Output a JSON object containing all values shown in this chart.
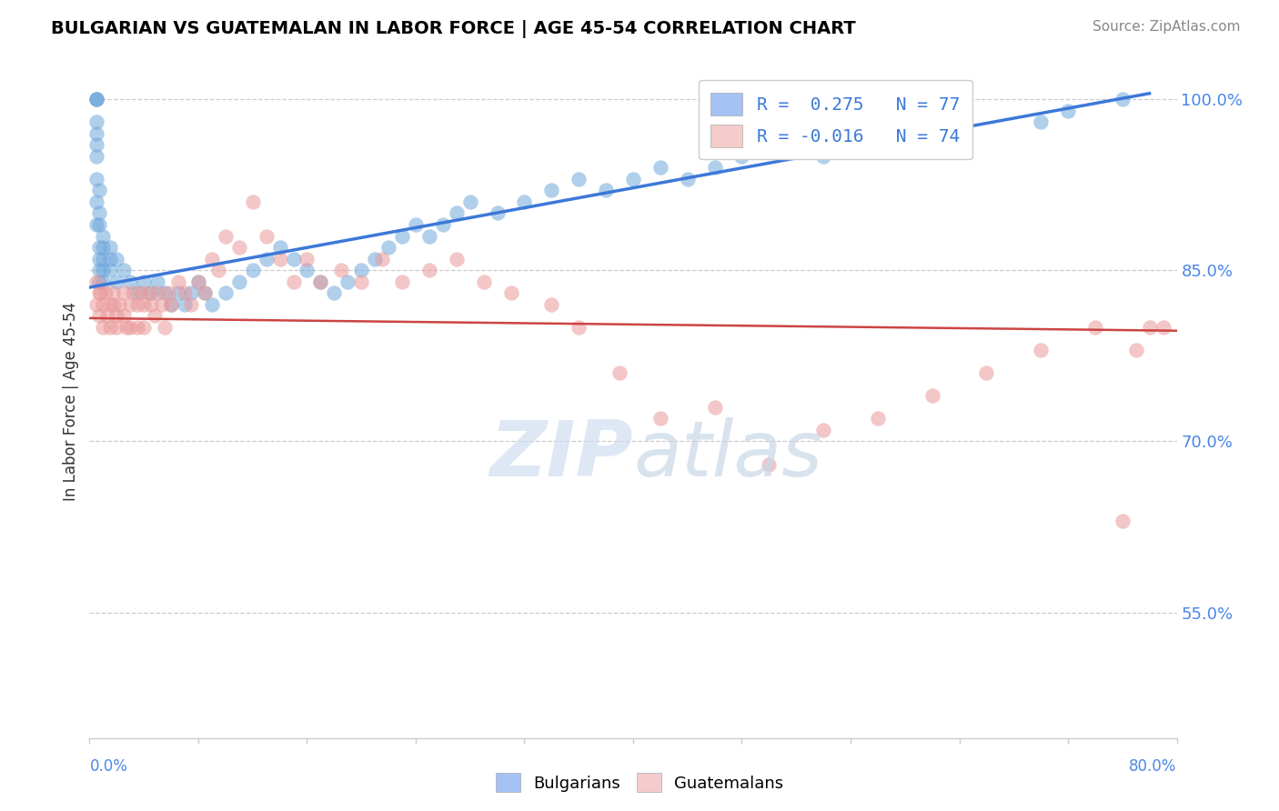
{
  "title": "BULGARIAN VS GUATEMALAN IN LABOR FORCE | AGE 45-54 CORRELATION CHART",
  "source": "Source: ZipAtlas.com",
  "ylabel": "In Labor Force | Age 45-54",
  "right_ytick_vals": [
    1.0,
    0.85,
    0.7,
    0.55
  ],
  "xlim": [
    0.0,
    0.8
  ],
  "ylim": [
    0.44,
    1.03
  ],
  "blue_R": 0.275,
  "blue_N": 77,
  "pink_R": -0.016,
  "pink_N": 74,
  "blue_color": "#6fa8dc",
  "pink_color": "#ea9999",
  "blue_fill": "#a4c2f4",
  "pink_fill": "#f4cccc",
  "trend_blue_color": "#3c78d8",
  "trend_pink_color": "#cc4444",
  "bg_color": "#ffffff",
  "grid_color": "#cccccc",
  "legend_text_color": "#3c78d8",
  "title_color": "#000000",
  "source_color": "#888888",
  "blue_x": [
    0.005,
    0.005,
    0.005,
    0.005,
    0.005,
    0.005,
    0.005,
    0.005,
    0.005,
    0.005,
    0.007,
    0.007,
    0.007,
    0.007,
    0.007,
    0.007,
    0.007,
    0.01,
    0.01,
    0.01,
    0.01,
    0.01,
    0.015,
    0.015,
    0.015,
    0.02,
    0.02,
    0.025,
    0.03,
    0.035,
    0.04,
    0.045,
    0.05,
    0.055,
    0.06,
    0.065,
    0.07,
    0.075,
    0.08,
    0.085,
    0.09,
    0.1,
    0.11,
    0.12,
    0.13,
    0.14,
    0.15,
    0.16,
    0.17,
    0.18,
    0.19,
    0.2,
    0.21,
    0.22,
    0.23,
    0.24,
    0.25,
    0.26,
    0.27,
    0.28,
    0.3,
    0.32,
    0.34,
    0.36,
    0.38,
    0.4,
    0.42,
    0.44,
    0.46,
    0.48,
    0.5,
    0.54,
    0.58,
    0.64,
    0.7,
    0.72,
    0.76
  ],
  "blue_y": [
    1.0,
    1.0,
    1.0,
    0.98,
    0.97,
    0.96,
    0.95,
    0.93,
    0.91,
    0.89,
    0.92,
    0.9,
    0.89,
    0.87,
    0.86,
    0.85,
    0.84,
    0.88,
    0.87,
    0.86,
    0.85,
    0.84,
    0.87,
    0.86,
    0.85,
    0.86,
    0.84,
    0.85,
    0.84,
    0.83,
    0.84,
    0.83,
    0.84,
    0.83,
    0.82,
    0.83,
    0.82,
    0.83,
    0.84,
    0.83,
    0.82,
    0.83,
    0.84,
    0.85,
    0.86,
    0.87,
    0.86,
    0.85,
    0.84,
    0.83,
    0.84,
    0.85,
    0.86,
    0.87,
    0.88,
    0.89,
    0.88,
    0.89,
    0.9,
    0.91,
    0.9,
    0.91,
    0.92,
    0.93,
    0.92,
    0.93,
    0.94,
    0.93,
    0.94,
    0.95,
    0.96,
    0.95,
    0.96,
    0.97,
    0.98,
    0.99,
    1.0
  ],
  "pink_x": [
    0.005,
    0.005,
    0.007,
    0.007,
    0.008,
    0.01,
    0.01,
    0.012,
    0.013,
    0.015,
    0.015,
    0.017,
    0.018,
    0.02,
    0.02,
    0.022,
    0.025,
    0.025,
    0.027,
    0.03,
    0.03,
    0.032,
    0.035,
    0.035,
    0.038,
    0.04,
    0.04,
    0.043,
    0.045,
    0.048,
    0.05,
    0.053,
    0.055,
    0.058,
    0.06,
    0.065,
    0.07,
    0.075,
    0.08,
    0.085,
    0.09,
    0.095,
    0.1,
    0.11,
    0.12,
    0.13,
    0.14,
    0.15,
    0.16,
    0.17,
    0.185,
    0.2,
    0.215,
    0.23,
    0.25,
    0.27,
    0.29,
    0.31,
    0.34,
    0.36,
    0.39,
    0.42,
    0.46,
    0.5,
    0.54,
    0.58,
    0.62,
    0.66,
    0.7,
    0.74,
    0.76,
    0.77,
    0.78,
    0.79
  ],
  "pink_y": [
    0.84,
    0.82,
    0.83,
    0.81,
    0.83,
    0.82,
    0.8,
    0.83,
    0.81,
    0.82,
    0.8,
    0.83,
    0.82,
    0.81,
    0.8,
    0.82,
    0.83,
    0.81,
    0.8,
    0.82,
    0.8,
    0.83,
    0.82,
    0.8,
    0.83,
    0.82,
    0.8,
    0.83,
    0.82,
    0.81,
    0.83,
    0.82,
    0.8,
    0.83,
    0.82,
    0.84,
    0.83,
    0.82,
    0.84,
    0.83,
    0.86,
    0.85,
    0.88,
    0.87,
    0.91,
    0.88,
    0.86,
    0.84,
    0.86,
    0.84,
    0.85,
    0.84,
    0.86,
    0.84,
    0.85,
    0.86,
    0.84,
    0.83,
    0.82,
    0.8,
    0.76,
    0.72,
    0.73,
    0.68,
    0.71,
    0.72,
    0.74,
    0.76,
    0.78,
    0.8,
    0.63,
    0.78,
    0.8,
    0.8
  ],
  "blue_trend_x0": 0.0,
  "blue_trend_x1": 0.78,
  "blue_trend_y0": 0.835,
  "blue_trend_y1": 1.005,
  "pink_trend_x0": 0.0,
  "pink_trend_x1": 0.8,
  "pink_trend_y0": 0.808,
  "pink_trend_y1": 0.797
}
